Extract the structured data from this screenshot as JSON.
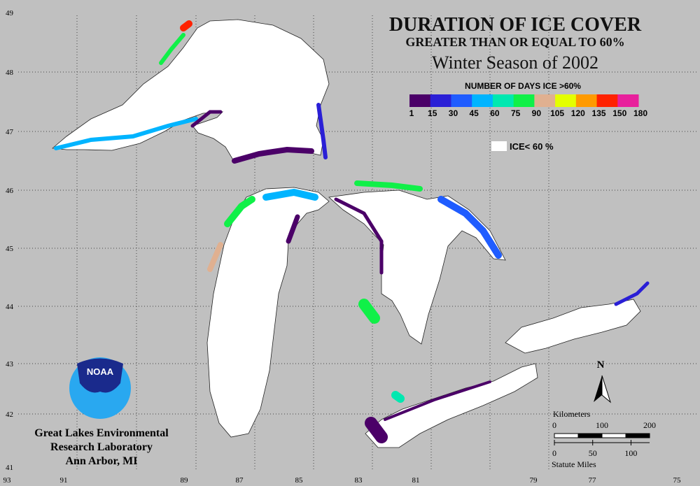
{
  "header": {
    "title": "DURATION OF ICE COVER",
    "subtitle": "GREATER THAN OR EQUAL TO 60%",
    "season": "Winter Season of 2002"
  },
  "legend": {
    "title": "NUMBER OF DAYS ICE >60%",
    "labels": [
      1,
      15,
      30,
      45,
      60,
      75,
      90,
      105,
      120,
      135,
      150,
      180
    ],
    "colors": [
      "#4b0068",
      "#2a1fd6",
      "#1f5cff",
      "#00b4ff",
      "#00e8b0",
      "#10f048",
      "#e0b090",
      "#e4ff00",
      "#ff9a00",
      "#ff2200",
      "#e8209c"
    ],
    "low_ice_label": "ICE< 60 %"
  },
  "latitudes": [
    49,
    48,
    47,
    46,
    45,
    44,
    43,
    42,
    41
  ],
  "longitudes": [
    93,
    91,
    89,
    87,
    85,
    83,
    81,
    79,
    77,
    75
  ],
  "logo": {
    "text": "NOAA",
    "lines": [
      "Great Lakes Environmental",
      "Research Laboratory",
      "Ann Arbor, MI"
    ]
  },
  "compass": "N",
  "scale": {
    "km_title": "Kilometers",
    "km_labels": [
      0,
      100,
      200
    ],
    "mi_title": "Statute Miles",
    "mi_labels": [
      0,
      50,
      100
    ]
  }
}
